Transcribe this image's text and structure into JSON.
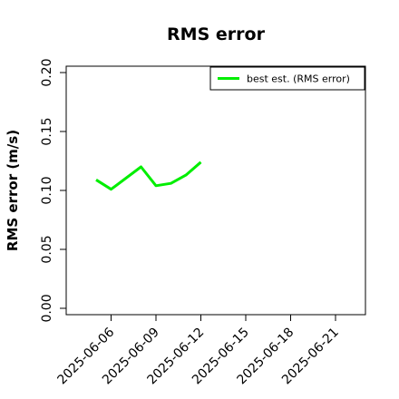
{
  "chart_data": {
    "type": "line",
    "title": "RMS error",
    "y_label": "RMS error (m/s)",
    "x": [
      "2025-06-05",
      "2025-06-06",
      "2025-06-08",
      "2025-06-09",
      "2025-06-10",
      "2025-06-11",
      "2025-06-12"
    ],
    "series": [
      {
        "name": "best est. (RMS error)",
        "color": "#00ee00",
        "values": [
          0.109,
          0.101,
          0.12,
          0.104,
          0.106,
          0.113,
          0.124
        ]
      }
    ],
    "xlim": [
      "2025-06-03",
      "2025-06-23"
    ],
    "xticks": [
      "2025-06-06",
      "2025-06-09",
      "2025-06-12",
      "2025-06-15",
      "2025-06-18",
      "2025-06-21"
    ],
    "xtick_colors": [
      "#000000",
      "#000000",
      "#228b22",
      "#000000",
      "#000000",
      "#000000"
    ],
    "ylim": [
      -0.0054,
      0.2054
    ],
    "yticks": [
      {
        "value": 0,
        "label": "0.00"
      },
      {
        "value": 0.05,
        "label": "0.05"
      },
      {
        "value": 0.1,
        "label": "0.10"
      },
      {
        "value": 0.15,
        "label": "0.15"
      },
      {
        "value": 0.2,
        "label": "0.20"
      }
    ],
    "legend": "topright"
  }
}
